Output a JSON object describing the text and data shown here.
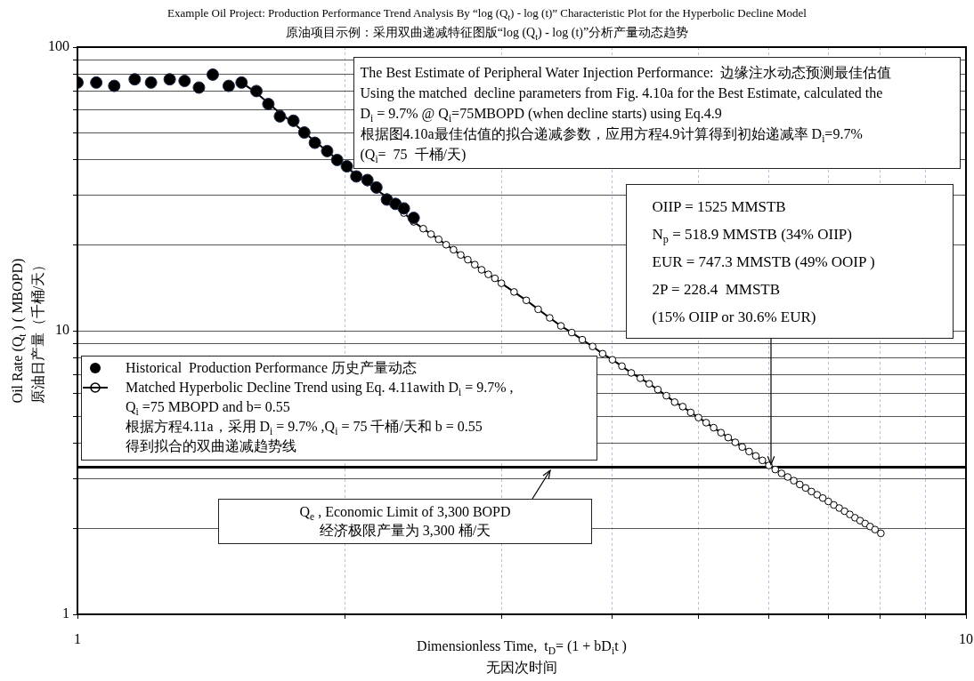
{
  "chart_data": {
    "type": "scatter",
    "title": "Example Oil Project: Production Performance Trend Analysis By “log (Q$_{t}$) - log (t)” Characteristic Plot for the Hyperbolic Decline Model",
    "subtitle": "原油项目示例：采用双曲递减特征图版“log (Q$_{t}$) - log (t)”分析产量动态趋势",
    "xlabel": "Dimensionless Time,  t$_{D}$= (1 + bD$_{i}$t )\n无因次时间",
    "ylabel": "Oil Rate (Q$_{t}$ ) ( MBOPD)\n原油日产量（千桶/天）",
    "log": "xy",
    "xlim": [
      1,
      10
    ],
    "ylim": [
      1,
      100
    ],
    "xticks": [
      1,
      {
        "value": 2,
        "label": null
      },
      {
        "value": 3,
        "label": null
      },
      {
        "value": 4,
        "label": null
      },
      {
        "value": 5,
        "label": null
      },
      {
        "value": 6,
        "label": null
      },
      {
        "value": 7,
        "label": null
      },
      {
        "value": 8,
        "label": null
      },
      {
        "value": 9,
        "label": null
      },
      10
    ],
    "yticks": [
      1,
      {
        "value": 2,
        "label": null
      },
      {
        "value": 3,
        "label": null
      },
      {
        "value": 4,
        "label": null
      },
      {
        "value": 5,
        "label": null
      },
      {
        "value": 6,
        "label": null
      },
      {
        "value": 7,
        "label": null
      },
      {
        "value": 8,
        "label": null
      },
      {
        "value": 9,
        "label": null
      },
      10,
      {
        "value": 20,
        "label": null
      },
      {
        "value": 30,
        "label": null
      },
      {
        "value": 40,
        "label": null
      },
      {
        "value": 50,
        "label": null
      },
      {
        "value": 60,
        "label": null
      },
      {
        "value": 70,
        "label": null
      },
      {
        "value": 80,
        "label": null
      },
      {
        "value": 90,
        "label": null
      },
      100
    ],
    "grid": true,
    "legend": "left",
    "series": [
      {
        "name": "Historical  Production Performance 历史产量动态",
        "type": "scatter",
        "color": "#000000",
        "marker": "circle",
        "x": [
          1.0,
          1.05,
          1.1,
          1.16,
          1.21,
          1.27,
          1.32,
          1.37,
          1.42,
          1.48,
          1.53,
          1.59,
          1.64,
          1.69,
          1.75,
          1.8,
          1.85,
          1.91,
          1.96,
          2.01,
          2.06,
          2.12,
          2.17,
          2.23,
          2.28,
          2.33,
          2.39
        ],
        "values": [
          75,
          75,
          73,
          77,
          75,
          77,
          76,
          72,
          80,
          73,
          75,
          70,
          63,
          57,
          55,
          50,
          46,
          43,
          40,
          38,
          35,
          34,
          32,
          29,
          28,
          27,
          25
        ]
      },
      {
        "name": "Matched Hyperbolic Decline Trend using Eq. 4.11awith D$_{i}$ = 9.7% ,\nQ$_{i}$ =75 MBOPD and b= 0.55\n根据方程4.11a，采用 D$_{i}$ = 9.7% ,Q$_{i}$ = 75 千桶/天和 b = 0.55\n得到拟合的双曲递减趋势线",
        "type": "line",
        "color": "#000000",
        "marker": "circle",
        "x": [
          1.53,
          1.59,
          1.64,
          1.69,
          1.75,
          1.8,
          1.85,
          1.91,
          1.96,
          2.01,
          2.06,
          2.12,
          2.17,
          2.23,
          2.28,
          2.33,
          2.39,
          2.45,
          2.5,
          2.55,
          2.6,
          2.65,
          2.7,
          2.75,
          2.8,
          2.85,
          2.9,
          2.95,
          3.0,
          3.1,
          3.2,
          3.3,
          3.4,
          3.5,
          3.6,
          3.7,
          3.8,
          3.9,
          4.0,
          4.1,
          4.2,
          4.3,
          4.4,
          4.5,
          4.6,
          4.7,
          4.8,
          4.9,
          5.0,
          5.1,
          5.2,
          5.3,
          5.4,
          5.5,
          5.6,
          5.7,
          5.8,
          5.9,
          6.0,
          6.1,
          6.2,
          6.3,
          6.4,
          6.5,
          6.6,
          6.7,
          6.8,
          6.9,
          7.0,
          7.1,
          7.2,
          7.3,
          7.4,
          7.5,
          7.6,
          7.7,
          7.8,
          7.9,
          8.02
        ],
        "values": [
          75,
          69,
          63.5,
          58.5,
          54,
          50,
          46.5,
          43,
          40.2,
          37.7,
          35.4,
          33.3,
          31.4,
          29.6,
          27.8,
          26.0,
          24.2,
          22.9,
          21.9,
          21.0,
          20.1,
          19.3,
          18.5,
          17.8,
          17.1,
          16.4,
          15.8,
          15.3,
          14.7,
          13.7,
          12.8,
          11.9,
          11.1,
          10.4,
          9.85,
          9.3,
          8.8,
          8.3,
          7.9,
          7.5,
          7.1,
          6.8,
          6.5,
          6.2,
          5.9,
          5.6,
          5.4,
          5.15,
          4.94,
          4.74,
          4.55,
          4.37,
          4.2,
          4.04,
          3.89,
          3.75,
          3.62,
          3.49,
          3.35,
          3.24,
          3.14,
          3.05,
          2.96,
          2.87,
          2.79,
          2.71,
          2.64,
          2.57,
          2.5,
          2.43,
          2.37,
          2.31,
          2.25,
          2.19,
          2.14,
          2.09,
          2.04,
          1.99,
          1.93
        ]
      }
    ],
    "ref_lines": [
      {
        "axis": "y",
        "value": 3.3,
        "label": "Q$_{e}$ , Economic Limit of 3,300 BOPD\n经济极限产量为 3,300 桶/天",
        "color": "#000000"
      }
    ],
    "annotations": [
      "The Best Estimate of Peripheral Water Injection Performance:  边缘注水动态预测最佳估值\nUsing the matched  decline parameters from Fig. 4.10a for the Best Estimate, calculated the\nD$_{i}$ = 9.7% @ Q$_{i}$=75MBOPD (when decline starts) using Eq.4.9\n根据图4.10a最佳估值的拟合递减参数，应用方程4.9计算得到初始递减率 D$_{i}$=9.7%\n(Q$_{i}$=  75  千桶/天)",
      {
        "text": "OIIP = 1525 MMSTB\nN$_{p}$ = 518.9 MMSTB (34% OIIP)\nEUR = 747.3 MMSTB (49% OOIP )\n2P = 228.4  MMSTB\n(15% OIIP or 30.6% EUR)",
        "x": 6.04,
        "y": 3.3
      }
    ]
  }
}
